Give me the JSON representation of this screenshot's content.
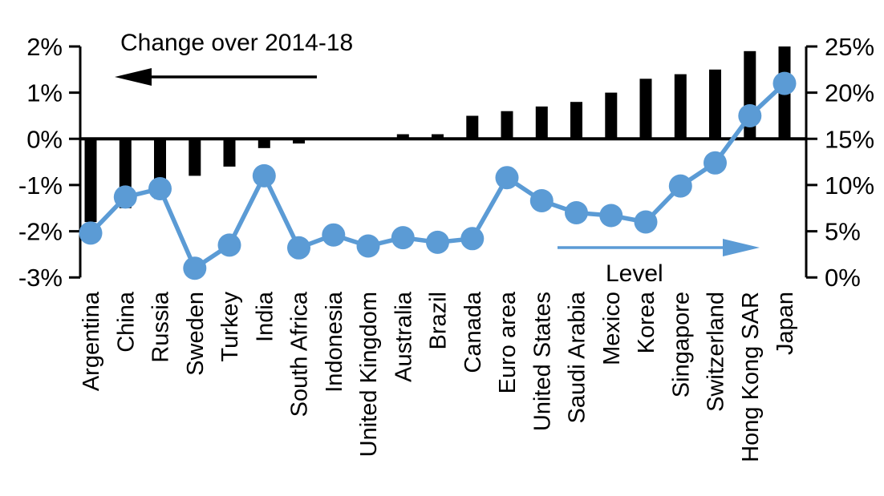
{
  "chart_data": {
    "type": "combo-bar-line",
    "categories": [
      "Argentina",
      "China",
      "Russia",
      "Sweden",
      "Turkey",
      "India",
      "South Africa",
      "Indonesia",
      "United Kingdom",
      "Australia",
      "Brazil",
      "Canada",
      "Euro area",
      "United States",
      "Saudi Arabia",
      "Mexico",
      "Korea",
      "Singapore",
      "Switzerland",
      "Hong Kong SAR",
      "Japan"
    ],
    "series": [
      {
        "name": "Change over 2014-18",
        "type": "bar",
        "axis": "left",
        "unit": "percentage points",
        "color": "#000000",
        "values": [
          -1.8,
          -1.5,
          -1.3,
          -0.8,
          -0.6,
          -0.2,
          -0.1,
          0,
          0,
          0.1,
          0.1,
          0.5,
          0.6,
          0.7,
          0.8,
          1.0,
          1.3,
          1.4,
          1.5,
          1.9,
          2.0
        ]
      },
      {
        "name": "Level",
        "type": "line",
        "axis": "right",
        "unit": "percent",
        "color": "#5B9BD5",
        "values": [
          4.8,
          8.7,
          9.6,
          1.0,
          3.5,
          11.0,
          3.2,
          4.6,
          3.4,
          4.3,
          3.8,
          4.2,
          10.8,
          8.3,
          7.0,
          6.7,
          6.0,
          9.9,
          12.4,
          17.5,
          21.0
        ]
      }
    ],
    "left_axis": {
      "min": -3,
      "max": 2,
      "ticks": [
        "2%",
        "1%",
        "0%",
        "-1%",
        "-2%",
        "-3%"
      ],
      "tick_values": [
        2,
        1,
        0,
        -1,
        -2,
        -3
      ]
    },
    "right_axis": {
      "min": 0,
      "max": 25,
      "ticks": [
        "25%",
        "20%",
        "15%",
        "10%",
        "5%",
        "0%"
      ],
      "tick_values": [
        25,
        20,
        15,
        10,
        5,
        0
      ]
    },
    "annotations": {
      "left_label": "Change over 2014-18",
      "left_arrow_direction": "left",
      "right_label": "Level",
      "right_arrow_direction": "right"
    },
    "grid": false,
    "legend_position": "in-plot-arrows",
    "colors": {
      "bar": "#000000",
      "line": "#5B9BD5",
      "axis": "#000000",
      "background": "#ffffff"
    }
  }
}
